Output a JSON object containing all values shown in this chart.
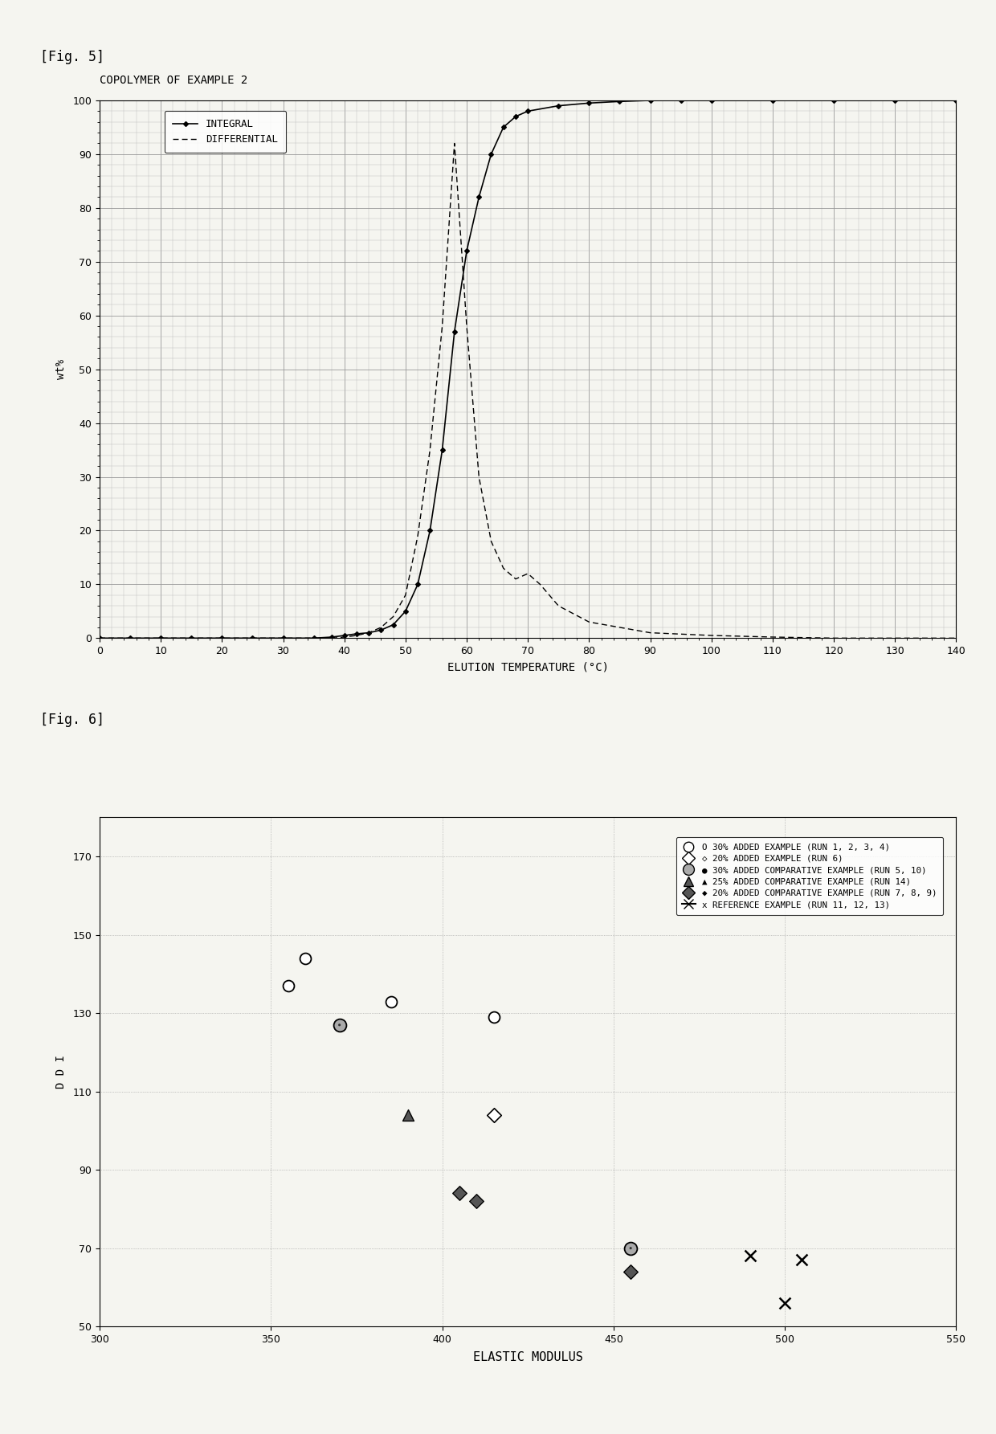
{
  "fig5_title": "COPOLYMER OF EXAMPLE 2",
  "fig5_xlabel": "ELUTION TEMPERATURE (°C)",
  "fig5_ylabel": "wt%",
  "fig5_xlim": [
    0,
    140
  ],
  "fig5_ylim": [
    0,
    100
  ],
  "fig5_xticks": [
    0,
    10,
    20,
    30,
    40,
    50,
    60,
    70,
    80,
    90,
    100,
    110,
    120,
    130,
    140
  ],
  "fig5_yticks": [
    0,
    10,
    20,
    30,
    40,
    50,
    60,
    70,
    80,
    90,
    100
  ],
  "integral_x": [
    0,
    5,
    10,
    15,
    20,
    25,
    30,
    35,
    38,
    40,
    42,
    44,
    46,
    48,
    50,
    52,
    54,
    56,
    58,
    60,
    62,
    64,
    66,
    68,
    70,
    75,
    80,
    85,
    90,
    95,
    100,
    110,
    120,
    130,
    140
  ],
  "integral_y": [
    0,
    0,
    0,
    0,
    0,
    0,
    0,
    0,
    0.2,
    0.5,
    0.8,
    1.0,
    1.5,
    2.5,
    5,
    10,
    20,
    35,
    57,
    72,
    82,
    90,
    95,
    97,
    98,
    99,
    99.5,
    99.8,
    100,
    100,
    100,
    100,
    100,
    100,
    100
  ],
  "differential_x": [
    0,
    30,
    35,
    38,
    40,
    42,
    44,
    46,
    48,
    50,
    52,
    54,
    56,
    58,
    60,
    62,
    64,
    66,
    68,
    70,
    72,
    75,
    80,
    90,
    100,
    110,
    120,
    130,
    140
  ],
  "differential_y": [
    0,
    0,
    0,
    0,
    0.2,
    0.5,
    1,
    2,
    4,
    8,
    19,
    35,
    58,
    92,
    58,
    30,
    18,
    13,
    11,
    12,
    10,
    6,
    3,
    1,
    0.5,
    0.2,
    0,
    0,
    0
  ],
  "fig6_xlabel": "ELASTIC MODULUS",
  "fig6_ylabel": "D D I",
  "fig6_xlim": [
    300,
    550
  ],
  "fig6_ylim": [
    50,
    180
  ],
  "fig6_xticks": [
    300,
    350,
    400,
    450,
    500,
    550
  ],
  "fig6_yticks": [
    50,
    70,
    90,
    110,
    130,
    150,
    170
  ],
  "series": [
    {
      "label": "O 30% ADDED EXAMPLE (RUN 1, 2, 3, 4)",
      "marker": "o",
      "facecolor": "white",
      "edgecolor": "black",
      "x": [
        355,
        360,
        385,
        415
      ],
      "y": [
        137,
        144,
        133,
        129
      ]
    },
    {
      "label": "◇ 20% ADDED EXAMPLE (RUN 6)",
      "marker": "D",
      "facecolor": "white",
      "edgecolor": "black",
      "x": [
        415
      ],
      "y": [
        104
      ]
    },
    {
      "label": "● 30% ADDED COMPARATIVE EXAMPLE (RUN 5, 10)",
      "marker": "o",
      "facecolor": "#888888",
      "edgecolor": "black",
      "x": [
        370,
        455
      ],
      "y": [
        127,
        70
      ]
    },
    {
      "label": "▲ 25% ADDED COMPARATIVE EXAMPLE (RUN 14)",
      "marker": "^",
      "facecolor": "#555555",
      "edgecolor": "black",
      "x": [
        390
      ],
      "y": [
        104
      ]
    },
    {
      "label": "◆ 20% ADDED COMPARATIVE EXAMPLE (RUN 7, 8, 9)",
      "marker": "D",
      "facecolor": "#555555",
      "edgecolor": "black",
      "x": [
        405,
        410,
        455
      ],
      "y": [
        84,
        82,
        64
      ]
    },
    {
      "label": "x REFERENCE EXAMPLE (RUN 11, 12, 13)",
      "marker": "x",
      "facecolor": "black",
      "edgecolor": "black",
      "x": [
        490,
        500,
        505
      ],
      "y": [
        68,
        56,
        67
      ]
    }
  ],
  "fig5_label": "[Fig. 5]",
  "fig6_label": "[Fig. 6]",
  "background": "#f5f5f0"
}
